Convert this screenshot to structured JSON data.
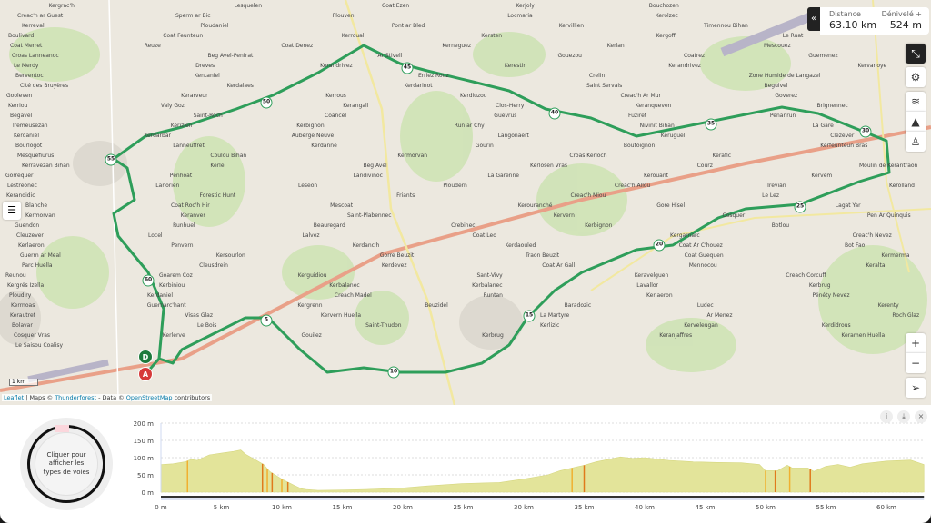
{
  "stats": {
    "distance_label": "Distance",
    "distance_value": "63.10 km",
    "elevation_label": "Dénivelé +",
    "elevation_value": "524 m"
  },
  "controls": {
    "collapse_icon": "double-chevron-left-icon",
    "zoom_in": "+",
    "zoom_out": "−"
  },
  "attribution": {
    "leaflet": "Leaflet",
    "sep1": " | Maps © ",
    "thunderforest": "Thunderforest",
    "sep2": " - Data © ",
    "osm": "OpenStreetMap",
    "tail": " contributors"
  },
  "scale_label": "1 km",
  "route_color": "#2e9e5a",
  "markers": {
    "start": "A",
    "finish": "D",
    "km": [
      "5",
      "10",
      "15",
      "20",
      "25",
      "30",
      "35",
      "40",
      "45",
      "50",
      "55",
      "60"
    ]
  },
  "places": [
    "Kergrac'h",
    "Lesquelen",
    "Coat Ezen",
    "Kerjoly",
    "Bouchozen",
    "Creac'h ar Guest",
    "Sperm ar Bic",
    "Plouven",
    "Locmaria",
    "Kerolzec",
    "Kerreval",
    "Ploudaniel",
    "Pont ar Bled",
    "Kervillien",
    "Timennou Bihan",
    "Boulivard",
    "Coat Feunteun",
    "Kerroual",
    "Kersten",
    "Kergoff",
    "Le Ruat",
    "Coat Merret",
    "Reuze",
    "Coat Denez",
    "Kerneguez",
    "Kerlan",
    "Mescouez",
    "Croas Lanneanoc",
    "Beg Avel-Penfrat",
    "Ar Stivell",
    "Gouezou",
    "Coatrez",
    "Guemenez",
    "Le Merdy",
    "Dreves",
    "Kerandrivez",
    "Kerestin",
    "Kerandrivez",
    "Kervanoye",
    "Berventoc",
    "Kentaniel",
    "Erriez Rouz",
    "Crelin",
    "Zone Humide de Langazel",
    "Cité des Bruyères",
    "Kerdalaes",
    "Kerdarinot",
    "Saint Servais",
    "Beguivel",
    "Gooleven",
    "Kerarveur",
    "Kerrous",
    "Kerdiuzou",
    "Creac'h Ar Mur",
    "Goverez",
    "Kerriou",
    "Valy Goz",
    "Kerangall",
    "Clos-Herry",
    "Keranqueven",
    "Brignennec",
    "Begavel",
    "Saint-Roch",
    "Coancel",
    "Guevrus",
    "Fuziret",
    "Penanrun",
    "Tremeusezan",
    "Kerizien",
    "Kerbignon",
    "Run ar Chy",
    "Nivinit Bihan",
    "La Gare",
    "Kerdaniel",
    "Kerdarbar",
    "Auberge Neuve",
    "Langonaert",
    "Keruguel",
    "Clezever",
    "Bourlogot",
    "Lanneuffret",
    "Kerdanne",
    "Gourin",
    "Boutoignon",
    "Kerfeunteun Bras",
    "Mesquefiurus",
    "Coulou Bihan",
    "Kermorvan",
    "Croas Kerloch",
    "Kerafic",
    "Kerravezan Bihan",
    "Kerlel",
    "Beg Avel",
    "Kerlosen Vras",
    "Courz",
    "Moulin de Kerantraon",
    "Gorrequer",
    "Penhoat",
    "Landivinoc",
    "La Garenne",
    "Kerouant",
    "Kervem",
    "Lestreonec",
    "Lanorien",
    "Leseon",
    "Ploudern",
    "Creac'h Allou",
    "Treviàn",
    "Kerolland",
    "Kerandidic",
    "Forestic Hunt",
    "Friants",
    "Creac'h Miou",
    "Le Lez",
    "Blanche",
    "Coat Roc'h Hir",
    "Mescoat",
    "Kerouranché",
    "Gore Hisel",
    "Lagat Yar",
    "Kermorvan",
    "Keranver",
    "Saint-Plabennec",
    "Kervern",
    "Cosquer",
    "Pen Ar Quinquis",
    "Guendon",
    "Runhuel",
    "Beauregard",
    "Crebinec",
    "Kerbignon",
    "Botlou",
    "Cleuzever",
    "Locel",
    "Lalvez",
    "Coat Leo",
    "Kergarnarc",
    "Creac'h Nevez",
    "Kerlaeron",
    "Penvern",
    "Kerdanc'h",
    "Kerdaouled",
    "Coat Ar C'houez",
    "Bot Fao",
    "Guerrn ar Meal",
    "Kersourlon",
    "Gorre Beuzit",
    "Traon Beuzit",
    "Coat Guequen",
    "Kermerma",
    "Parc Huella",
    "Cleusdrein",
    "Kerdevez",
    "Coat Ar Gall",
    "Mennocou",
    "Keraltal",
    "Reunou",
    "Goarem Coz",
    "Kerguidiou",
    "Sant-Vivy",
    "Keravelguen",
    "Creach Corcuff",
    "Kergrés Izella",
    "Kerbiniou",
    "Kerbalanec",
    "Kerbalanec",
    "Lavallor",
    "Kerbrug",
    "Ploudiry",
    "Kerdaniel",
    "Creach Madel",
    "Runtan",
    "Kerlaeron",
    "Pénéty Nevez",
    "Kerrnoas",
    "Guernarc'hant",
    "Kergrenn",
    "Beuzidel",
    "Baradozic",
    "Ludec",
    "Kerenty",
    "Kerautret",
    "Visas Glaz",
    "Kervern Huella",
    "La Martyre",
    "Ar Menez",
    "Roch Glaz",
    "Bolavar",
    "Le Bois",
    "Saint-Thudon",
    "Kerlizic",
    "Kerveleugan",
    "Kerdidrous",
    "Cosquer Vras",
    "Kerlerve",
    "Gouilez",
    "Kerbrug",
    "Keranjaffres",
    "Keramen Huella",
    "Le Saisou Coalisy"
  ],
  "profile": {
    "y_ticks": [
      "200 m",
      "150 m",
      "100 m",
      "50 m",
      "0 m"
    ],
    "x_ticks": [
      "0 m",
      "5 km",
      "10 km",
      "15 km",
      "20 km",
      "25 km",
      "30 km",
      "35 km",
      "40 km",
      "45 km",
      "50 km",
      "55 km",
      "60 km"
    ],
    "wheel_text": "Cliquer pour afficher les types de voies",
    "buttons": {
      "info": "i",
      "download": "⤓",
      "close": "×"
    }
  },
  "chart_data": {
    "type": "area",
    "xlabel": "",
    "ylabel": "",
    "xlim": [
      0,
      63.1
    ],
    "ylim": [
      0,
      200
    ],
    "grid": true,
    "x_unit": "km",
    "y_unit": "m",
    "x": [
      0,
      1,
      2,
      2.5,
      3,
      4,
      5,
      6,
      6.6,
      7,
      8,
      8.5,
      9,
      10,
      11,
      11.6,
      12,
      13,
      15,
      17,
      20,
      22,
      25,
      28,
      30,
      32,
      33,
      34,
      35,
      36,
      37,
      38,
      39,
      40,
      42,
      44,
      46,
      48,
      49.5,
      50,
      51,
      51.8,
      52.2,
      53.5,
      54,
      55,
      56,
      57,
      58,
      60,
      62,
      63.1
    ],
    "y": [
      80,
      82,
      88,
      95,
      92,
      108,
      113,
      118,
      122,
      110,
      90,
      80,
      60,
      38,
      20,
      10,
      8,
      5,
      6,
      8,
      12,
      18,
      25,
      28,
      38,
      50,
      62,
      70,
      78,
      88,
      95,
      102,
      98,
      100,
      92,
      88,
      86,
      85,
      80,
      62,
      62,
      78,
      70,
      70,
      60,
      75,
      80,
      72,
      82,
      90,
      93,
      80
    ],
    "steep_segments_km": [
      2.2,
      8.4,
      8.8,
      9.2,
      10,
      10.5,
      34,
      35,
      50,
      50.8,
      52,
      53.7
    ]
  }
}
